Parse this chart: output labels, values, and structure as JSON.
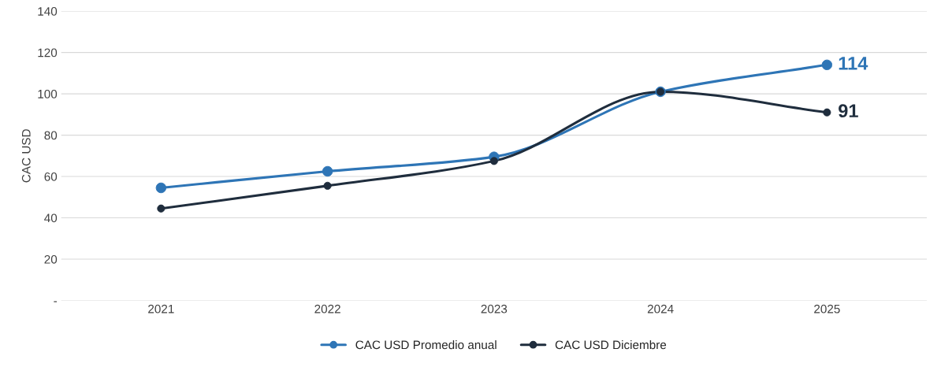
{
  "chart_data": {
    "type": "line",
    "ylabel": "CAC USD",
    "categories": [
      "2021",
      "2022",
      "2023",
      "2024",
      "2025"
    ],
    "series": [
      {
        "name": "CAC USD Promedio anual",
        "color": "#2e75b6",
        "values": [
          54.5,
          62.5,
          69.5,
          101,
          114
        ],
        "value_labels": [
          null,
          null,
          null,
          null,
          "114"
        ]
      },
      {
        "name": "CAC USD Diciembre",
        "color": "#1f2d3d",
        "values": [
          44.5,
          55.5,
          67.5,
          101,
          91
        ],
        "value_labels": [
          null,
          null,
          null,
          null,
          "91"
        ]
      }
    ],
    "ylim": [
      0,
      140
    ],
    "yticks": [
      {
        "value": 0,
        "label": "-"
      },
      20,
      40,
      60,
      80,
      100,
      120,
      140
    ],
    "grid": "y",
    "legend": "bottom",
    "marker": "circle",
    "line_style": "solid"
  }
}
